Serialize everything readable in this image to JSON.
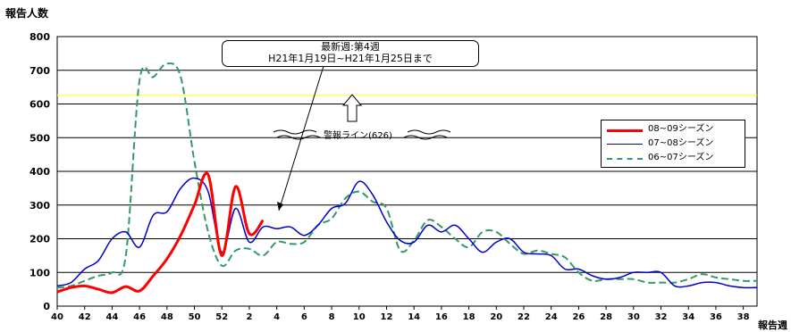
{
  "chart_data": {
    "type": "line",
    "ylabel": "報告人数",
    "xlabel": "報告週",
    "ylim": [
      0,
      800
    ],
    "yticks": [
      0,
      100,
      200,
      300,
      400,
      500,
      600,
      700,
      800
    ],
    "xticks": [
      "40",
      "42",
      "44",
      "46",
      "48",
      "50",
      "52",
      "2",
      "4",
      "6",
      "8",
      "10",
      "12",
      "14",
      "16",
      "18",
      "20",
      "22",
      "24",
      "26",
      "28",
      "30",
      "32",
      "34",
      "36",
      "38"
    ],
    "weeks": [
      40,
      41,
      42,
      43,
      44,
      45,
      46,
      47,
      48,
      49,
      50,
      51,
      52,
      1,
      2,
      3,
      4,
      5,
      6,
      7,
      8,
      9,
      10,
      11,
      12,
      13,
      14,
      15,
      16,
      17,
      18,
      19,
      20,
      21,
      22,
      23,
      24,
      25,
      26,
      27,
      28,
      29,
      30,
      31,
      32,
      33,
      34,
      35,
      36,
      37,
      38,
      39
    ],
    "alert_line": {
      "value": 626,
      "label": "警報ライン(626)",
      "color": "#ffff66"
    },
    "callout": {
      "line1": "最新週:第4週",
      "line2": "H21年1月19日~H21年1月25日まで"
    },
    "grid": true,
    "legend_position": "right",
    "series": [
      {
        "name": "08~09シーズン",
        "color": "#ff0000",
        "style": "solid",
        "values": [
          42,
          55,
          60,
          50,
          40,
          58,
          45,
          90,
          140,
          210,
          300,
          390,
          150,
          355,
          215,
          255,
          null,
          null,
          null,
          null,
          null,
          null,
          null,
          null,
          null,
          null,
          null,
          null,
          null,
          null,
          null,
          null,
          null,
          null,
          null,
          null,
          null,
          null,
          null,
          null,
          null,
          null,
          null,
          null,
          null,
          null,
          null,
          null,
          null,
          null,
          null,
          null
        ]
      },
      {
        "name": "07~08シーズン",
        "color": "#0000cc",
        "style": "solid",
        "values": [
          60,
          70,
          110,
          135,
          200,
          220,
          175,
          270,
          280,
          350,
          380,
          340,
          160,
          290,
          190,
          235,
          230,
          235,
          210,
          240,
          290,
          305,
          370,
          330,
          250,
          195,
          190,
          240,
          220,
          240,
          200,
          160,
          190,
          200,
          160,
          155,
          150,
          110,
          110,
          90,
          80,
          85,
          100,
          100,
          100,
          60,
          60,
          70,
          70,
          60,
          55,
          55
        ]
      },
      {
        "name": "06~07シーズン",
        "color": "#339966",
        "style": "dashed",
        "values": [
          55,
          60,
          75,
          90,
          100,
          150,
          670,
          680,
          720,
          680,
          430,
          220,
          120,
          165,
          170,
          150,
          190,
          185,
          190,
          240,
          260,
          320,
          340,
          310,
          290,
          165,
          195,
          255,
          235,
          200,
          175,
          220,
          220,
          185,
          155,
          165,
          155,
          145,
          100,
          75,
          80,
          80,
          80,
          70,
          70,
          70,
          80,
          95,
          85,
          80,
          75,
          75
        ]
      }
    ]
  }
}
